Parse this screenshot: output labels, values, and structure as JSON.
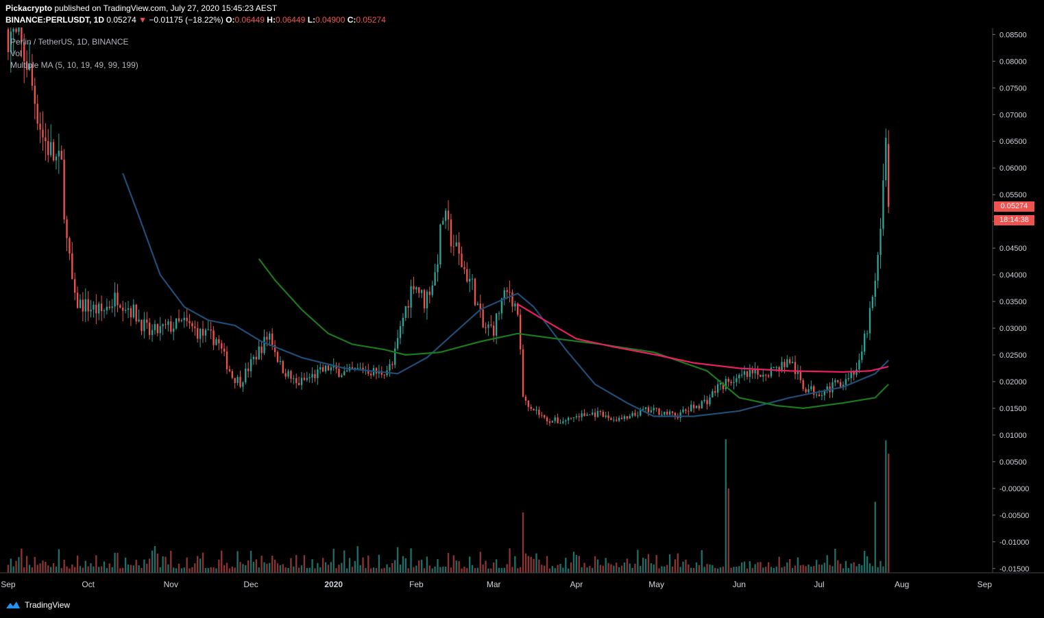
{
  "header": {
    "author": "Pickacrypto",
    "published": "published on TradingView.com, July 27, 2020 15:45:23 AEST",
    "symbol": "BINANCE:PERLUSDT, 1D",
    "last": "0.05274",
    "arrow": "▼",
    "change": "−0.01175 (−18.22%)",
    "o_label": "O:",
    "o_value": "0.06449",
    "h_label": "H:",
    "h_value": "0.06449",
    "l_label": "L:",
    "l_value": "0.04900",
    "c_label": "C:",
    "c_value": "0.05274"
  },
  "legend": {
    "title": "Perlin / TetherUS, 1D, BINANCE",
    "volume": "Vol",
    "ma": "Multiple MA (5, 10, 19, 49, 99, 199)"
  },
  "price_tags": {
    "price": "0.05274",
    "countdown": "18:14:38"
  },
  "footer": {
    "brand": "TradingView"
  },
  "colors": {
    "up": "#26a69a",
    "down": "#ef5350",
    "vol_up": "#1e6f68",
    "vol_down": "#8c3434",
    "ma_blue": "#1f4e79",
    "ma_green": "#1b7a1b",
    "ma_pink": "#e91e63"
  },
  "chart_data": {
    "type": "candlestick",
    "x_tick_labels": [
      "Sep",
      "Oct",
      "Nov",
      "Dec",
      "2020",
      "Feb",
      "Mar",
      "Apr",
      "May",
      "Jun",
      "Jul",
      "Aug",
      "Sep"
    ],
    "y_tick_labels": [
      "0.08500",
      "0.08000",
      "0.07500",
      "0.07000",
      "0.06500",
      "0.06000",
      "0.05500",
      "0.05000",
      "0.04500",
      "0.04000",
      "0.03500",
      "0.03000",
      "0.02500",
      "0.02000",
      "0.01500",
      "0.01000",
      "0.00500",
      "-0.00000",
      "-0.00500",
      "-0.01000",
      "-0.01500"
    ],
    "ylim": [
      -0.0158,
      0.0862
    ],
    "price_anchors": [
      [
        "2019-09-01",
        0.086
      ],
      [
        "2019-09-05",
        0.083
      ],
      [
        "2019-09-08",
        0.08
      ],
      [
        "2019-09-11",
        0.073
      ],
      [
        "2019-09-14",
        0.066
      ],
      [
        "2019-09-18",
        0.062
      ],
      [
        "2019-09-21",
        0.06
      ],
      [
        "2019-09-23",
        0.046
      ],
      [
        "2019-09-26",
        0.035
      ],
      [
        "2019-10-01",
        0.034
      ],
      [
        "2019-10-06",
        0.033
      ],
      [
        "2019-10-12",
        0.036
      ],
      [
        "2019-10-18",
        0.033
      ],
      [
        "2019-10-24",
        0.029
      ],
      [
        "2019-10-30",
        0.03
      ],
      [
        "2019-11-06",
        0.031
      ],
      [
        "2019-11-12",
        0.029
      ],
      [
        "2019-11-18",
        0.028
      ],
      [
        "2019-11-24",
        0.021
      ],
      [
        "2019-11-27",
        0.02
      ],
      [
        "2019-12-03",
        0.025
      ],
      [
        "2019-12-08",
        0.029
      ],
      [
        "2019-12-12",
        0.023
      ],
      [
        "2019-12-18",
        0.0195
      ],
      [
        "2019-12-24",
        0.021
      ],
      [
        "2019-12-30",
        0.0225
      ],
      [
        "2020-01-06",
        0.0215
      ],
      [
        "2020-01-12",
        0.0225
      ],
      [
        "2020-01-18",
        0.0215
      ],
      [
        "2020-01-23",
        0.023
      ],
      [
        "2020-01-27",
        0.032
      ],
      [
        "2020-01-31",
        0.039
      ],
      [
        "2020-02-04",
        0.035
      ],
      [
        "2020-02-08",
        0.04
      ],
      [
        "2020-02-11",
        0.051
      ],
      [
        "2020-02-14",
        0.047
      ],
      [
        "2020-02-18",
        0.042
      ],
      [
        "2020-02-22",
        0.038
      ],
      [
        "2020-02-26",
        0.03
      ],
      [
        "2020-03-01",
        0.03
      ],
      [
        "2020-03-04",
        0.035
      ],
      [
        "2020-03-07",
        0.037
      ],
      [
        "2020-03-10",
        0.033
      ],
      [
        "2020-03-12",
        0.017
      ],
      [
        "2020-03-16",
        0.015
      ],
      [
        "2020-03-20",
        0.013
      ],
      [
        "2020-03-26",
        0.0125
      ],
      [
        "2020-04-01",
        0.0135
      ],
      [
        "2020-04-08",
        0.014
      ],
      [
        "2020-04-14",
        0.013
      ],
      [
        "2020-04-20",
        0.013
      ],
      [
        "2020-04-26",
        0.0145
      ],
      [
        "2020-05-02",
        0.0145
      ],
      [
        "2020-05-08",
        0.0135
      ],
      [
        "2020-05-14",
        0.015
      ],
      [
        "2020-05-20",
        0.0165
      ],
      [
        "2020-05-24",
        0.019
      ],
      [
        "2020-05-28",
        0.02
      ],
      [
        "2020-06-03",
        0.021
      ],
      [
        "2020-06-09",
        0.0215
      ],
      [
        "2020-06-15",
        0.0225
      ],
      [
        "2020-06-20",
        0.024
      ],
      [
        "2020-06-25",
        0.019
      ],
      [
        "2020-06-30",
        0.018
      ],
      [
        "2020-07-06",
        0.019
      ],
      [
        "2020-07-12",
        0.021
      ],
      [
        "2020-07-16",
        0.023
      ],
      [
        "2020-07-19",
        0.03
      ],
      [
        "2020-07-22",
        0.038
      ],
      [
        "2020-07-24",
        0.047
      ],
      [
        "2020-07-26",
        0.0645
      ],
      [
        "2020-07-27",
        0.0527
      ]
    ],
    "series": [
      {
        "name": "MA 49",
        "color": "#1f4e79",
        "points": [
          [
            "2019-10-14",
            0.059
          ],
          [
            "2019-10-20",
            0.051
          ],
          [
            "2019-10-28",
            0.04
          ],
          [
            "2019-11-06",
            0.034
          ],
          [
            "2019-11-15",
            0.0315
          ],
          [
            "2019-11-25",
            0.0305
          ],
          [
            "2019-12-05",
            0.0275
          ],
          [
            "2019-12-20",
            0.0245
          ],
          [
            "2020-01-05",
            0.0225
          ],
          [
            "2020-01-25",
            0.0215
          ],
          [
            "2020-02-05",
            0.0245
          ],
          [
            "2020-02-15",
            0.029
          ],
          [
            "2020-02-25",
            0.0335
          ],
          [
            "2020-03-05",
            0.0355
          ],
          [
            "2020-03-10",
            0.0365
          ],
          [
            "2020-03-16",
            0.034
          ],
          [
            "2020-03-28",
            0.026
          ],
          [
            "2020-04-08",
            0.0195
          ],
          [
            "2020-04-20",
            0.016
          ],
          [
            "2020-04-30",
            0.0135
          ],
          [
            "2020-05-15",
            0.0135
          ],
          [
            "2020-06-01",
            0.0145
          ],
          [
            "2020-06-20",
            0.017
          ],
          [
            "2020-07-10",
            0.019
          ],
          [
            "2020-07-22",
            0.0215
          ],
          [
            "2020-07-27",
            0.024
          ]
        ]
      },
      {
        "name": "MA 99",
        "color": "#1b7a1b",
        "points": [
          [
            "2019-12-04",
            0.043
          ],
          [
            "2019-12-10",
            0.039
          ],
          [
            "2019-12-20",
            0.0335
          ],
          [
            "2019-12-30",
            0.029
          ],
          [
            "2020-01-08",
            0.027
          ],
          [
            "2020-01-20",
            0.026
          ],
          [
            "2020-01-28",
            0.025
          ],
          [
            "2020-02-10",
            0.0255
          ],
          [
            "2020-02-25",
            0.0275
          ],
          [
            "2020-03-10",
            0.029
          ],
          [
            "2020-03-25",
            0.028
          ],
          [
            "2020-04-10",
            0.027
          ],
          [
            "2020-04-30",
            0.0255
          ],
          [
            "2020-05-20",
            0.022
          ],
          [
            "2020-06-01",
            0.017
          ],
          [
            "2020-06-15",
            0.0155
          ],
          [
            "2020-06-25",
            0.015
          ],
          [
            "2020-07-10",
            0.016
          ],
          [
            "2020-07-22",
            0.017
          ],
          [
            "2020-07-27",
            0.0195
          ]
        ]
      },
      {
        "name": "MA 199",
        "color": "#e91e63",
        "points": [
          [
            "2020-03-10",
            0.0345
          ],
          [
            "2020-03-20",
            0.0315
          ],
          [
            "2020-04-01",
            0.028
          ],
          [
            "2020-04-15",
            0.0265
          ],
          [
            "2020-05-01",
            0.025
          ],
          [
            "2020-05-15",
            0.0235
          ],
          [
            "2020-06-01",
            0.0225
          ],
          [
            "2020-06-20",
            0.022
          ],
          [
            "2020-07-10",
            0.0218
          ],
          [
            "2020-07-20",
            0.022
          ],
          [
            "2020-07-27",
            0.0228
          ]
        ]
      }
    ],
    "volume_spikes": [
      [
        "2020-05-27",
        0.0092
      ],
      [
        "2020-07-26",
        0.009
      ],
      [
        "2020-07-27",
        0.0065
      ],
      [
        "2020-05-28",
        0.0
      ],
      [
        "2020-07-22",
        -0.0025
      ],
      [
        "2020-03-12",
        -0.0045
      ]
    ],
    "grid": false
  }
}
